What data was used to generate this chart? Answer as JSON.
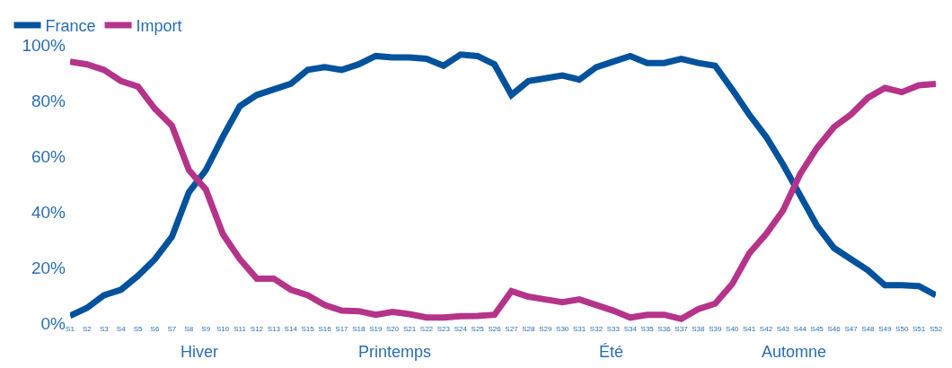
{
  "chart_data": {
    "type": "line",
    "categories": [
      "S1",
      "S2",
      "S3",
      "S4",
      "S5",
      "S6",
      "S7",
      "S8",
      "S9",
      "S10",
      "S11",
      "S12",
      "S13",
      "S14",
      "S15",
      "S16",
      "S17",
      "S18",
      "S19",
      "S20",
      "S21",
      "S22",
      "S23",
      "S24",
      "S25",
      "S26",
      "S27",
      "S28",
      "S29",
      "S30",
      "S31",
      "S32",
      "S33",
      "S34",
      "S35",
      "S36",
      "S37",
      "S38",
      "S39",
      "S40",
      "S41",
      "S42",
      "S43",
      "S44",
      "S45",
      "S46",
      "S47",
      "S48",
      "S49",
      "S50",
      "S51",
      "S52"
    ],
    "series": [
      {
        "name": "France",
        "color": "#00529c",
        "values": [
          2.6,
          5.5,
          10,
          12,
          17,
          23,
          31,
          47,
          55,
          67,
          78,
          82,
          84,
          86,
          91,
          92,
          91,
          93,
          96,
          95.5,
          95.5,
          95,
          92.5,
          96.5,
          96,
          93,
          82,
          87,
          88,
          89,
          87.5,
          92,
          94,
          96,
          93.5,
          93.5,
          95,
          93.5,
          92.5,
          84,
          75,
          67,
          57,
          46,
          35,
          27,
          23,
          19,
          13.6,
          13.6,
          13.3,
          10
        ]
      },
      {
        "name": "Import",
        "color": "#b5348a",
        "values": [
          94,
          93,
          91,
          87,
          85,
          77,
          71,
          55,
          48,
          32,
          23,
          16,
          16,
          12,
          10,
          6.5,
          4.5,
          4.3,
          3,
          4,
          3.2,
          2,
          2,
          2.5,
          2.6,
          3,
          11.5,
          9.5,
          8.5,
          7.5,
          8.5,
          6.5,
          4.5,
          2,
          3,
          3,
          1.5,
          5,
          7,
          14,
          25,
          32,
          40.5,
          53.5,
          63,
          70.5,
          75,
          81,
          84.5,
          83,
          85.5,
          86
        ]
      }
    ],
    "ylim": [
      0,
      100
    ],
    "yticks": [
      {
        "value": 0,
        "label": "0%"
      },
      {
        "value": 20,
        "label": "20%"
      },
      {
        "value": 40,
        "label": "40%"
      },
      {
        "value": 60,
        "label": "60%"
      },
      {
        "value": 80,
        "label": "80%"
      },
      {
        "value": 100,
        "label": "100%"
      }
    ],
    "annotations": [
      "Hiver",
      "Printemps",
      "Été",
      "Automne"
    ],
    "legend": "top left",
    "marker": "none",
    "line_style": "solid"
  }
}
